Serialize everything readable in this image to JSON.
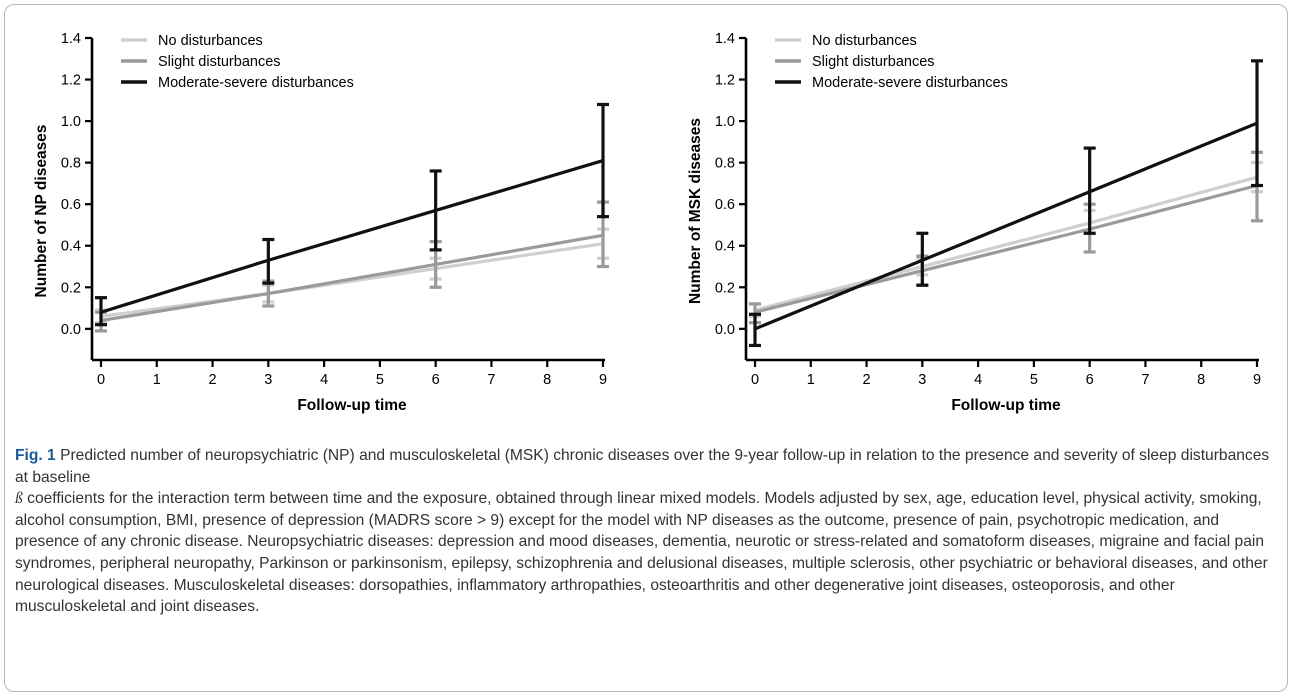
{
  "figure": {
    "label": "Fig. 1",
    "caption_title": "Predicted number of neuropsychiatric (NP) and musculoskeletal (MSK) chronic diseases over the 9-year follow-up in relation to the presence and severity of sleep disturbances at baseline",
    "beta_symbol": "ß",
    "caption_body": "coefficients for the interaction term between time and the exposure, obtained through linear mixed models. Models adjusted by sex, age, education level, physical activity, smoking, alcohol consumption, BMI, presence of depression (MADRS score > 9) except for the model with NP diseases as the outcome, presence of pain, psychotropic medication, and presence of any chronic disease. Neuropsychiatric diseases: depression and mood diseases, dementia, neurotic or stress-related and somatoform diseases, migraine and facial pain syndromes, peripheral neuropathy, Parkinson or parkinsonism, epilepsy, schizophrenia and delusional diseases, multiple sclerosis, other psychiatric or behavioral diseases, and other neurological diseases. Musculoskeletal diseases: dorsopathies, inflammatory arthropathies, osteoarthritis and other degenerative joint diseases, osteoporosis, and other musculoskeletal and joint diseases."
  },
  "colors": {
    "no_disturbances": "#cfcfcf",
    "slight_disturbances": "#9a9a9a",
    "moderate_severe": "#111111"
  },
  "chart_data": [
    {
      "type": "line",
      "xlabel": "Follow-up time",
      "ylabel": "Number of NP diseases",
      "xlim": [
        0,
        9
      ],
      "ylim": [
        -0.15,
        1.4
      ],
      "x_ticks": [
        0,
        1,
        2,
        3,
        4,
        5,
        6,
        7,
        8,
        9
      ],
      "y_ticks": [
        0.0,
        0.2,
        0.4,
        0.6,
        0.8,
        1.0,
        1.2,
        1.4
      ],
      "y_tick_labels": [
        "0.0",
        "0.2",
        "0.4",
        "0.6",
        "0.8",
        "1.0",
        "1.2",
        "1.4"
      ],
      "legend_position": "top-left",
      "grid": false,
      "x": [
        0,
        3,
        6,
        9
      ],
      "series": [
        {
          "name": "No disturbances",
          "color_key": "no_disturbances",
          "values": [
            0.06,
            0.17,
            0.29,
            0.41
          ],
          "lower": [
            0.03,
            0.13,
            0.24,
            0.34
          ],
          "upper": [
            0.09,
            0.21,
            0.34,
            0.48
          ]
        },
        {
          "name": "Slight disturbances",
          "color_key": "slight_disturbances",
          "values": [
            0.04,
            0.17,
            0.31,
            0.45
          ],
          "lower": [
            -0.01,
            0.11,
            0.2,
            0.3
          ],
          "upper": [
            0.08,
            0.23,
            0.42,
            0.61
          ]
        },
        {
          "name": "Moderate-severe disturbances",
          "color_key": "moderate_severe",
          "values": [
            0.08,
            0.33,
            0.57,
            0.81
          ],
          "lower": [
            0.02,
            0.22,
            0.38,
            0.54
          ],
          "upper": [
            0.15,
            0.43,
            0.76,
            1.08
          ]
        }
      ]
    },
    {
      "type": "line",
      "xlabel": "Follow-up time",
      "ylabel": "Number of MSK diseases",
      "xlim": [
        0,
        9
      ],
      "ylim": [
        -0.15,
        1.4
      ],
      "x_ticks": [
        0,
        1,
        2,
        3,
        4,
        5,
        6,
        7,
        8,
        9
      ],
      "y_ticks": [
        0.0,
        0.2,
        0.4,
        0.6,
        0.8,
        1.0,
        1.2,
        1.4
      ],
      "y_tick_labels": [
        "0.0",
        "0.2",
        "0.4",
        "0.6",
        "0.8",
        "1.0",
        "1.2",
        "1.4"
      ],
      "legend_position": "top-left",
      "grid": false,
      "x": [
        0,
        3,
        6,
        9
      ],
      "series": [
        {
          "name": "No disturbances",
          "color_key": "no_disturbances",
          "values": [
            0.09,
            0.3,
            0.51,
            0.73
          ],
          "lower": [
            0.06,
            0.26,
            0.46,
            0.66
          ],
          "upper": [
            0.12,
            0.34,
            0.57,
            0.8
          ]
        },
        {
          "name": "Slight disturbances",
          "color_key": "slight_disturbances",
          "values": [
            0.08,
            0.28,
            0.48,
            0.69
          ],
          "lower": [
            0.03,
            0.21,
            0.37,
            0.52
          ],
          "upper": [
            0.12,
            0.35,
            0.6,
            0.85
          ]
        },
        {
          "name": "Moderate-severe disturbances",
          "color_key": "moderate_severe",
          "values": [
            0.0,
            0.33,
            0.66,
            0.99
          ],
          "lower": [
            -0.08,
            0.21,
            0.46,
            0.69
          ],
          "upper": [
            0.07,
            0.46,
            0.87,
            1.29
          ]
        }
      ]
    }
  ]
}
